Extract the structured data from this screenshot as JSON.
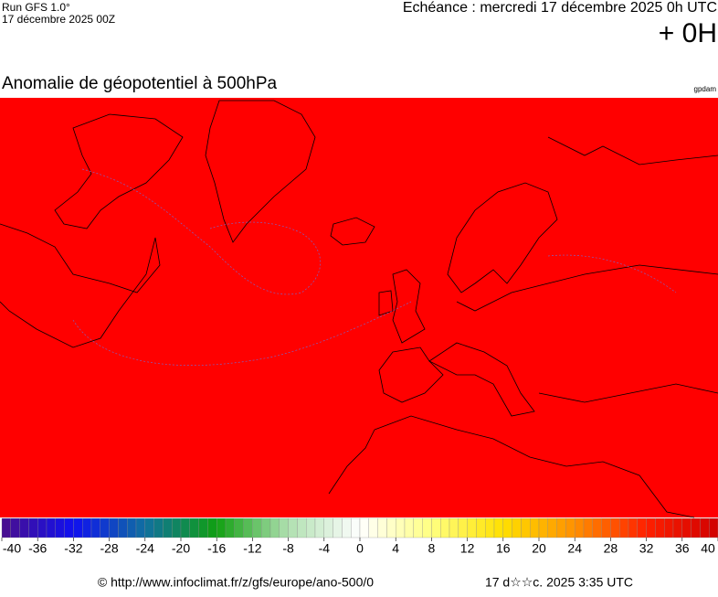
{
  "header": {
    "run": "Run GFS 1.0°",
    "run_date": "17 décembre 2025 00Z",
    "valid": "Echéance : mercredi 17 décembre 2025 0h UTC",
    "lead": "+ 0H"
  },
  "map": {
    "title": "Anomalie de géopotentiel à 500hPa",
    "unit": "gpdam",
    "fill_color": "#ff0000"
  },
  "colorbar": {
    "ticks": [
      -40,
      -36,
      -32,
      -28,
      -24,
      -20,
      -16,
      -12,
      -8,
      -4,
      0,
      4,
      8,
      12,
      16,
      20,
      24,
      28,
      32,
      36,
      40
    ],
    "stops": [
      "#4b0f8c",
      "#1010f0",
      "#1070a0",
      "#10a010",
      "#b0e0b0",
      "#ffffff",
      "#ffff80",
      "#ffe000",
      "#ff9000",
      "#ff2000",
      "#d00000"
    ]
  },
  "footer": {
    "source": "© http://www.infoclimat.fr/z/gfs/europe/ano-500/0",
    "generated": "17 d☆☆c. 2025  3:35 UTC"
  }
}
